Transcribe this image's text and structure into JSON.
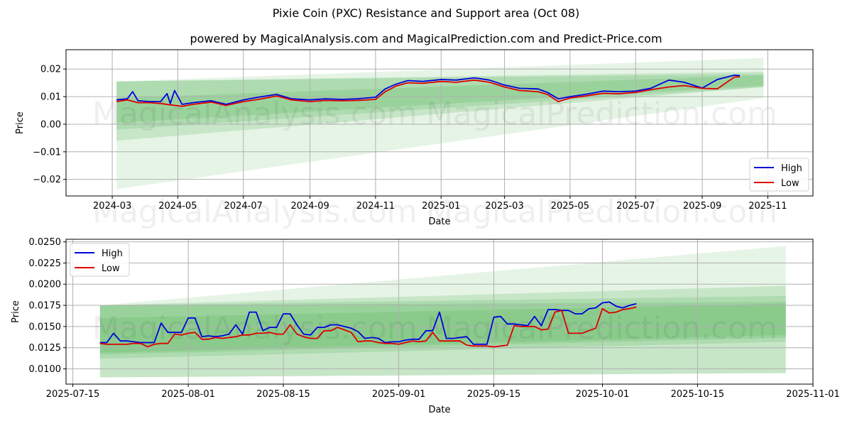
{
  "title": "Pixie Coin (PXC) Resistance and Support area (Oct 08)",
  "subtitle": "powered by MagicalAnalysis.com and MagicalPrediction.com and Predict-Price.com",
  "watermarks": [
    "MagicalAnalysis.com",
    "MagicalPrediction.com"
  ],
  "colors": {
    "high": "#0000dd",
    "low": "#dd0000",
    "band": "#4caf50",
    "grid": "#b0b0b0"
  },
  "chart_data": [
    {
      "type": "line",
      "name": "overview",
      "xlabel": "Date",
      "ylabel": "Price",
      "x_tick_labels": [
        "2024-03",
        "2024-05",
        "2024-07",
        "2024-09",
        "2024-11",
        "2025-01",
        "2025-03",
        "2025-05",
        "2025-07",
        "2025-09",
        "2025-11"
      ],
      "x_ticks": [
        "2024-03-01",
        "2024-05-01",
        "2024-07-01",
        "2024-09-01",
        "2024-11-01",
        "2025-01-01",
        "2025-03-01",
        "2025-05-01",
        "2025-07-01",
        "2025-09-01",
        "2025-11-01"
      ],
      "xlim": [
        "2024-01-18",
        "2025-12-13"
      ],
      "y_tick_labels": [
        "−0.02",
        "−0.01",
        "0.00",
        "0.01",
        "0.02"
      ],
      "y_ticks": [
        -0.02,
        -0.01,
        0.0,
        0.01,
        0.02
      ],
      "ylim": [
        -0.026,
        0.027
      ],
      "grid": true,
      "legend": {
        "position": "bottom-right",
        "entries": [
          "High",
          "Low"
        ]
      },
      "bands": [
        {
          "start": "2024-03-05",
          "end": "2025-10-28",
          "lower": [
            -0.0235,
            0.0095
          ],
          "upper": [
            0.0155,
            0.024
          ],
          "opacity": 0.14
        },
        {
          "start": "2024-03-05",
          "end": "2025-10-28",
          "lower": [
            -0.006,
            0.0135
          ],
          "upper": [
            0.0155,
            0.019
          ],
          "opacity": 0.2
        },
        {
          "start": "2024-03-05",
          "end": "2025-10-28",
          "lower": [
            -0.002,
            0.0135
          ],
          "upper": [
            0.0155,
            0.0182
          ],
          "opacity": 0.2
        },
        {
          "start": "2024-03-05",
          "end": "2025-10-28",
          "lower": [
            0.0005,
            0.014
          ],
          "upper": [
            0.0095,
            0.0178
          ],
          "opacity": 0.2
        }
      ],
      "series": [
        {
          "name": "High",
          "x": [
            "2024-03-05",
            "2024-03-15",
            "2024-03-20",
            "2024-03-25",
            "2024-04-05",
            "2024-04-15",
            "2024-04-21",
            "2024-04-24",
            "2024-04-28",
            "2024-05-05",
            "2024-05-15",
            "2024-06-01",
            "2024-06-15",
            "2024-07-01",
            "2024-07-15",
            "2024-08-01",
            "2024-08-15",
            "2024-09-01",
            "2024-09-15",
            "2024-10-01",
            "2024-10-15",
            "2024-11-01",
            "2024-11-10",
            "2024-11-20",
            "2024-12-01",
            "2024-12-15",
            "2025-01-01",
            "2025-01-15",
            "2025-02-01",
            "2025-02-15",
            "2025-03-01",
            "2025-03-15",
            "2025-04-01",
            "2025-04-10",
            "2025-04-20",
            "2025-05-01",
            "2025-05-15",
            "2025-06-01",
            "2025-06-15",
            "2025-07-01",
            "2025-07-15",
            "2025-08-01",
            "2025-08-15",
            "2025-09-01",
            "2025-09-15",
            "2025-10-01",
            "2025-10-06"
          ],
          "values": [
            0.0088,
            0.0092,
            0.0118,
            0.0085,
            0.0082,
            0.0082,
            0.0111,
            0.0075,
            0.0122,
            0.0072,
            0.0078,
            0.0085,
            0.0072,
            0.0088,
            0.0098,
            0.0108,
            0.0092,
            0.0088,
            0.0092,
            0.009,
            0.0092,
            0.0098,
            0.0128,
            0.0145,
            0.0158,
            0.0155,
            0.0162,
            0.016,
            0.0168,
            0.016,
            0.0142,
            0.013,
            0.0128,
            0.0115,
            0.0092,
            0.01,
            0.0108,
            0.012,
            0.0118,
            0.012,
            0.013,
            0.016,
            0.0152,
            0.0131,
            0.0162,
            0.0178,
            0.0176
          ]
        },
        {
          "name": "Low",
          "x": [
            "2024-03-05",
            "2024-03-15",
            "2024-03-25",
            "2024-04-05",
            "2024-04-15",
            "2024-04-24",
            "2024-05-05",
            "2024-05-15",
            "2024-06-01",
            "2024-06-15",
            "2024-07-01",
            "2024-07-15",
            "2024-08-01",
            "2024-08-15",
            "2024-09-01",
            "2024-09-15",
            "2024-10-01",
            "2024-10-15",
            "2024-11-01",
            "2024-11-10",
            "2024-11-20",
            "2024-12-01",
            "2024-12-15",
            "2025-01-01",
            "2025-01-15",
            "2025-02-01",
            "2025-02-15",
            "2025-03-01",
            "2025-03-15",
            "2025-04-01",
            "2025-04-10",
            "2025-04-20",
            "2025-05-01",
            "2025-05-15",
            "2025-06-01",
            "2025-06-15",
            "2025-07-01",
            "2025-07-15",
            "2025-08-01",
            "2025-08-15",
            "2025-09-01",
            "2025-09-15",
            "2025-10-01",
            "2025-10-06"
          ],
          "values": [
            0.0082,
            0.0088,
            0.0078,
            0.0078,
            0.0075,
            0.007,
            0.0065,
            0.0072,
            0.008,
            0.0068,
            0.0082,
            0.009,
            0.0102,
            0.0088,
            0.0082,
            0.0086,
            0.0085,
            0.0086,
            0.009,
            0.0118,
            0.0138,
            0.015,
            0.0148,
            0.0155,
            0.0152,
            0.016,
            0.0152,
            0.0135,
            0.0122,
            0.0118,
            0.0108,
            0.0082,
            0.0095,
            0.0102,
            0.0112,
            0.011,
            0.0115,
            0.0125,
            0.0135,
            0.014,
            0.013,
            0.0128,
            0.0171,
            0.0172
          ]
        }
      ]
    },
    {
      "type": "line",
      "name": "detail",
      "xlabel": "Date",
      "ylabel": "Price",
      "x_tick_labels": [
        "2025-07-15",
        "2025-08-01",
        "2025-08-15",
        "2025-09-01",
        "2025-09-15",
        "2025-10-01",
        "2025-10-15",
        "2025-11-01"
      ],
      "x_ticks": [
        "2025-07-15",
        "2025-08-01",
        "2025-08-15",
        "2025-09-01",
        "2025-09-15",
        "2025-10-01",
        "2025-10-15",
        "2025-11-01"
      ],
      "xlim": [
        "2025-07-14",
        "2025-11-01"
      ],
      "y_tick_labels": [
        "0.0100",
        "0.0125",
        "0.0150",
        "0.0175",
        "0.0200",
        "0.0225",
        "0.0250"
      ],
      "y_ticks": [
        0.01,
        0.0125,
        0.015,
        0.0175,
        0.02,
        0.0225,
        0.025
      ],
      "ylim": [
        0.0082,
        0.0253
      ],
      "grid": true,
      "legend": {
        "position": "top-left",
        "entries": [
          "High",
          "Low"
        ]
      },
      "bands": [
        {
          "start": "2025-07-19",
          "end": "2025-10-28",
          "lower": [
            0.009,
            0.0095
          ],
          "upper": [
            0.0175,
            0.0245
          ],
          "opacity": 0.14
        },
        {
          "start": "2025-07-19",
          "end": "2025-10-28",
          "lower": [
            0.009,
            0.0095
          ],
          "upper": [
            0.0175,
            0.0198
          ],
          "opacity": 0.2
        },
        {
          "start": "2025-07-19",
          "end": "2025-10-28",
          "lower": [
            0.0112,
            0.0132
          ],
          "upper": [
            0.0175,
            0.0186
          ],
          "opacity": 0.2
        },
        {
          "start": "2025-07-19",
          "end": "2025-10-28",
          "lower": [
            0.0117,
            0.0137
          ],
          "upper": [
            0.0175,
            0.0179
          ],
          "opacity": 0.2
        },
        {
          "start": "2025-07-19",
          "end": "2025-10-28",
          "lower": [
            0.0119,
            0.014
          ],
          "upper": [
            0.016,
            0.0177
          ],
          "opacity": 0.2
        }
      ],
      "series": [
        {
          "name": "High",
          "start": "2025-07-19",
          "values": [
            0.0131,
            0.0131,
            0.0142,
            0.0133,
            0.0133,
            0.0132,
            0.0131,
            0.0131,
            0.0131,
            0.0154,
            0.0143,
            0.0143,
            0.0143,
            0.016,
            0.016,
            0.0138,
            0.0139,
            0.0138,
            0.0139,
            0.0141,
            0.0152,
            0.0141,
            0.0167,
            0.0167,
            0.0145,
            0.0149,
            0.0149,
            0.0165,
            0.0165,
            0.0152,
            0.0141,
            0.014,
            0.0149,
            0.0149,
            0.0152,
            0.0152,
            0.015,
            0.0148,
            0.0144,
            0.0136,
            0.0137,
            0.0136,
            0.0131,
            0.0132,
            0.0132,
            0.0134,
            0.0135,
            0.0135,
            0.0145,
            0.0145,
            0.0167,
            0.0136,
            0.0136,
            0.0137,
            0.0138,
            0.0129,
            0.0129,
            0.0129,
            0.0161,
            0.0162,
            0.0153,
            0.0153,
            0.0152,
            0.0151,
            0.0162,
            0.0151,
            0.017,
            0.017,
            0.0169,
            0.0169,
            0.0165,
            0.0165,
            0.0171,
            0.0172,
            0.0178,
            0.0179,
            0.0174,
            0.0172,
            0.0175,
            0.0177
          ]
        },
        {
          "name": "Low",
          "start": "2025-07-19",
          "values": [
            0.013,
            0.0129,
            0.0129,
            0.0129,
            0.0129,
            0.013,
            0.013,
            0.0126,
            0.0129,
            0.013,
            0.013,
            0.0141,
            0.014,
            0.0142,
            0.0143,
            0.0135,
            0.0135,
            0.0137,
            0.0136,
            0.0137,
            0.0138,
            0.014,
            0.014,
            0.0142,
            0.0142,
            0.0143,
            0.0141,
            0.0141,
            0.0152,
            0.0141,
            0.0138,
            0.0136,
            0.0136,
            0.0145,
            0.0145,
            0.0149,
            0.0146,
            0.0143,
            0.0132,
            0.0133,
            0.0133,
            0.0131,
            0.013,
            0.013,
            0.0129,
            0.0131,
            0.0133,
            0.0132,
            0.0133,
            0.0143,
            0.0133,
            0.0133,
            0.0133,
            0.0133,
            0.0128,
            0.0127,
            0.0127,
            0.0127,
            0.0126,
            0.0127,
            0.0128,
            0.0151,
            0.015,
            0.015,
            0.015,
            0.0146,
            0.0147,
            0.0167,
            0.0169,
            0.0142,
            0.0142,
            0.0142,
            0.0145,
            0.0148,
            0.0171,
            0.0166,
            0.0167,
            0.017,
            0.0171,
            0.0173
          ]
        }
      ]
    }
  ]
}
